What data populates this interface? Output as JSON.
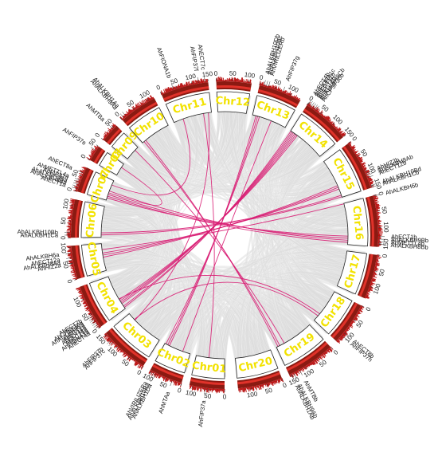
{
  "diagram": {
    "colors": {
      "background_links": "#dcdcdc",
      "segdup_links": "#d81b72",
      "band_outer": "#8b1a12",
      "band_inner": "#e0322a",
      "density_bar": "#b80e0e",
      "label_box_stroke": "#222222",
      "chr_label": "#f2e200"
    },
    "chromosomes": [
      {
        "name": "Chr01",
        "length": 110
      },
      {
        "name": "Chr02",
        "length": 105
      },
      {
        "name": "Chr03",
        "length": 155
      },
      {
        "name": "Chr04",
        "length": 140
      },
      {
        "name": "Chr05",
        "length": 105
      },
      {
        "name": "Chr06",
        "length": 120
      },
      {
        "name": "Chr07",
        "length": 80
      },
      {
        "name": "Chr08",
        "length": 50
      },
      {
        "name": "Chr09",
        "length": 60
      },
      {
        "name": "Chr10",
        "length": 120
      },
      {
        "name": "Chr11",
        "length": 150
      },
      {
        "name": "Chr12",
        "length": 110
      },
      {
        "name": "Chr13",
        "length": 135
      },
      {
        "name": "Chr14",
        "length": 150
      },
      {
        "name": "Chr15",
        "length": 155
      },
      {
        "name": "Chr16",
        "length": 160
      },
      {
        "name": "Chr17",
        "length": 140
      },
      {
        "name": "Chr18",
        "length": 135
      },
      {
        "name": "Chr19",
        "length": 155
      },
      {
        "name": "Chr20",
        "length": 140
      }
    ],
    "genes": [
      {
        "name": "AhFIP37a",
        "chr": 0,
        "pos": 60
      },
      {
        "name": "AhMTAa",
        "chr": 1,
        "pos": 30
      },
      {
        "name": "AhALKBH1Da",
        "chr": 1,
        "pos": 85
      },
      {
        "name": "AhALKBH10Ba",
        "chr": 1,
        "pos": 92
      },
      {
        "name": "AhVIRILIZERa",
        "chr": 1,
        "pos": 100
      },
      {
        "name": "AhFIP37c",
        "chr": 2,
        "pos": 120
      },
      {
        "name": "AhFIP37b",
        "chr": 2,
        "pos": 128
      },
      {
        "name": "AhECT4a",
        "chr": 3,
        "pos": 5
      },
      {
        "name": "AhFIONA1a",
        "chr": 3,
        "pos": 11
      },
      {
        "name": "AhECT5a",
        "chr": 3,
        "pos": 17
      },
      {
        "name": "AhECT11a",
        "chr": 3,
        "pos": 23
      },
      {
        "name": "AhECT2a",
        "chr": 3,
        "pos": 29
      },
      {
        "name": "AhALKBH9Ca",
        "chr": 3,
        "pos": 35
      },
      {
        "name": "AhCPSF30a",
        "chr": 3,
        "pos": 41
      },
      {
        "name": "AhECT7b",
        "chr": 3,
        "pos": 47
      },
      {
        "name": "AhHIZ2a",
        "chr": 4,
        "pos": 52
      },
      {
        "name": "AhALKBH8Aa",
        "chr": 4,
        "pos": 60
      },
      {
        "name": "AhECT12a",
        "chr": 4,
        "pos": 68
      },
      {
        "name": "AhALKBH6a",
        "chr": 4,
        "pos": 82
      },
      {
        "name": "AhALKBH1Ca",
        "chr": 5,
        "pos": 8
      },
      {
        "name": "AhALKBH10Bb",
        "chr": 5,
        "pos": 16
      },
      {
        "name": "AhECT1a",
        "chr": 6,
        "pos": 8
      },
      {
        "name": "AhALKBH8Ba",
        "chr": 6,
        "pos": 15
      },
      {
        "name": "AhALKBH9Ba",
        "chr": 6,
        "pos": 22
      },
      {
        "name": "AhFIP37d",
        "chr": 6,
        "pos": 29
      },
      {
        "name": "AhMETTL4a",
        "chr": 6,
        "pos": 36
      },
      {
        "name": "AhECT8a",
        "chr": 6,
        "pos": 60
      },
      {
        "name": "AhFIP37e",
        "chr": 7,
        "pos": 35
      },
      {
        "name": "AhMTBa",
        "chr": 8,
        "pos": 45
      },
      {
        "name": "AhALKBH9Aa",
        "chr": 9,
        "pos": 8
      },
      {
        "name": "AhALKBH1Aa",
        "chr": 9,
        "pos": 16
      },
      {
        "name": "AhFIONA1b",
        "chr": 10,
        "pos": 40
      },
      {
        "name": "AhFIP37f",
        "chr": 10,
        "pos": 120
      },
      {
        "name": "AhECT7c",
        "chr": 10,
        "pos": 140
      },
      {
        "name": "AhALKBH10Db",
        "chr": 12,
        "pos": 14
      },
      {
        "name": "AhALKBH10Bc",
        "chr": 12,
        "pos": 21
      },
      {
        "name": "AhVIRILIZERb",
        "chr": 12,
        "pos": 28
      },
      {
        "name": "AhFIP37g",
        "chr": 12,
        "pos": 75
      },
      {
        "name": "AhECT4b",
        "chr": 13,
        "pos": 2
      },
      {
        "name": "AhFIONA1c",
        "chr": 13,
        "pos": 8
      },
      {
        "name": "AhECT11b",
        "chr": 13,
        "pos": 14
      },
      {
        "name": "AhECT2b",
        "chr": 13,
        "pos": 20
      },
      {
        "name": "AhALKBH9Cb",
        "chr": 13,
        "pos": 26
      },
      {
        "name": "AhCPSF30b",
        "chr": 13,
        "pos": 32
      },
      {
        "name": "AhHIZ2b",
        "chr": 14,
        "pos": 108
      },
      {
        "name": "AhALKBH8Ab",
        "chr": 14,
        "pos": 115
      },
      {
        "name": "AhECT12b",
        "chr": 14,
        "pos": 122
      },
      {
        "name": "AhALKBH10Bd",
        "chr": 14,
        "pos": 148
      },
      {
        "name": "AhALKBH1Cb",
        "chr": 14,
        "pos": 154
      },
      {
        "name": "AhALKBH6b",
        "chr": 15,
        "pos": 2
      },
      {
        "name": "AhECT1b",
        "chr": 15,
        "pos": 128
      },
      {
        "name": "AhALKBH9Bb",
        "chr": 15,
        "pos": 136
      },
      {
        "name": "AhMETTL4b",
        "chr": 15,
        "pos": 144
      },
      {
        "name": "AhALKBH8Bb",
        "chr": 15,
        "pos": 152
      },
      {
        "name": "AhECT8b",
        "chr": 17,
        "pos": 100
      },
      {
        "name": "AhFIP37h",
        "chr": 17,
        "pos": 110
      },
      {
        "name": "AhMTBb",
        "chr": 18,
        "pos": 120
      },
      {
        "name": "AhALKBH9Ab",
        "chr": 18,
        "pos": 140
      },
      {
        "name": "AhALKBH1Ab",
        "chr": 18,
        "pos": 148
      }
    ],
    "gene_links": [
      [
        "AhFIP37a",
        "AhFIP37f"
      ],
      [
        "AhMTAa",
        "AhFIP37g"
      ],
      [
        "AhALKBH1Da",
        "AhALKBH10Db"
      ],
      [
        "AhALKBH10Ba",
        "AhALKBH10Bc"
      ],
      [
        "AhVIRILIZERa",
        "AhVIRILIZERb"
      ],
      [
        "AhFIP37c",
        "AhECT7c"
      ],
      [
        "AhFIP37b",
        "AhFIP37h"
      ],
      [
        "AhECT4a",
        "AhECT4b"
      ],
      [
        "AhFIONA1a",
        "AhFIONA1c"
      ],
      [
        "AhECT11a",
        "AhECT11b"
      ],
      [
        "AhECT2a",
        "AhECT2b"
      ],
      [
        "AhALKBH9Ca",
        "AhALKBH9Cb"
      ],
      [
        "AhCPSF30a",
        "AhCPSF30b"
      ],
      [
        "AhECT7b",
        "AhECT8b"
      ],
      [
        "AhHIZ2a",
        "AhHIZ2b"
      ],
      [
        "AhALKBH8Aa",
        "AhALKBH8Ab"
      ],
      [
        "AhECT12a",
        "AhECT12b"
      ],
      [
        "AhALKBH6a",
        "AhALKBH6b"
      ],
      [
        "AhALKBH1Ca",
        "AhALKBH1Cb"
      ],
      [
        "AhALKBH10Bb",
        "AhALKBH10Bd"
      ],
      [
        "AhECT1a",
        "AhECT1b"
      ],
      [
        "AhALKBH8Ba",
        "AhALKBH8Bb"
      ],
      [
        "AhALKBH9Ba",
        "AhALKBH9Bb"
      ],
      [
        "AhMETTL4a",
        "AhMETTL4b"
      ],
      [
        "AhFIP37d",
        "AhFIP37e"
      ],
      [
        "AhMTBa",
        "AhMTBb"
      ],
      [
        "AhALKBH9Aa",
        "AhALKBH9Ab"
      ],
      [
        "AhALKBH1Aa",
        "AhALKBH1Ab"
      ],
      [
        "AhFIONA1b",
        "AhECT8a"
      ]
    ]
  }
}
